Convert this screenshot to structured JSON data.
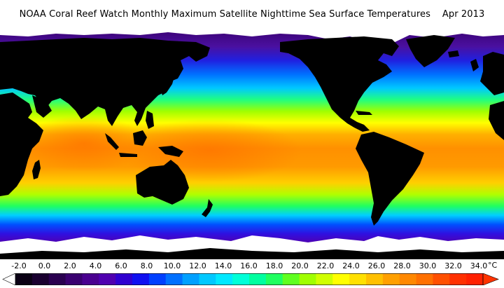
{
  "title": {
    "agency_text": "NOAA Coral Reef Watch Monthly Maximum Satellite Nighttime Sea Surface Temperatures",
    "date_text": "Apr 2013"
  },
  "map": {
    "projection": "equirectangular",
    "land_color": "#000000",
    "sea_ice_color": "#ffffff"
  },
  "colorbar": {
    "unit": "°C",
    "tick_labels": [
      "-2.0",
      "0.0",
      "2.0",
      "4.0",
      "6.0",
      "8.0",
      "10.0",
      "12.0",
      "14.0",
      "16.0",
      "18.0",
      "20.0",
      "22.0",
      "24.0",
      "26.0",
      "28.0",
      "30.0",
      "32.0",
      "34.0"
    ],
    "min": -2.0,
    "max": 34.0,
    "step": 0.5,
    "left_arrow_color": "#ffffff",
    "right_arrow_color": "#ff3300",
    "colors": [
      "#ffffff",
      "#0a0014",
      "#1a0030",
      "#2a0050",
      "#3a0070",
      "#4a0090",
      "#5000b0",
      "#3000d0",
      "#1010f0",
      "#0040ff",
      "#0070ff",
      "#00a0ff",
      "#00c8ff",
      "#00e8ff",
      "#00ffd8",
      "#00ffa0",
      "#20ff60",
      "#60ff20",
      "#a0ff00",
      "#d0ff00",
      "#ffff00",
      "#ffe000",
      "#ffc000",
      "#ffa000",
      "#ff8800",
      "#ff7000",
      "#ff5000",
      "#ff3000",
      "#ff2000"
    ]
  }
}
